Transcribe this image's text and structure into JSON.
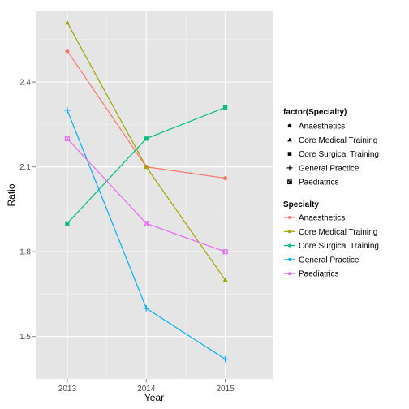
{
  "chart_data": {
    "type": "line",
    "title": "",
    "xlabel": "Year",
    "ylabel": "Ratio",
    "categories": [
      "2013",
      "2014",
      "2015"
    ],
    "xlim": [
      2012.6,
      2015.6
    ],
    "ylim": [
      1.35,
      2.65
    ],
    "yticks": [
      1.5,
      1.8,
      2.1,
      2.4
    ],
    "ytick_labels": [
      "1.5",
      "1.8",
      "2.1",
      "2.4"
    ],
    "grid": true,
    "legend_position": "right",
    "shape_legend": {
      "title": "factor(Specialty)",
      "entries": [
        "Anaesthetics",
        "Core Medical Training",
        "Core Surgical Training",
        "General Practice",
        "Paediatrics"
      ]
    },
    "color_legend": {
      "title": "Specialty",
      "entries": [
        "Anaesthetics",
        "Core Medical Training",
        "Core Surgical Training",
        "General Practice",
        "Paediatrics"
      ]
    },
    "series": [
      {
        "name": "Anaesthetics",
        "color": "#F8766D",
        "shape": "circle",
        "values": [
          2.51,
          2.1,
          2.06
        ]
      },
      {
        "name": "Core Medical Training",
        "color": "#A3A500",
        "shape": "triangle",
        "values": [
          2.61,
          2.1,
          1.7
        ]
      },
      {
        "name": "Core Surgical Training",
        "color": "#00BF7D",
        "shape": "square",
        "values": [
          1.9,
          2.2,
          2.31
        ]
      },
      {
        "name": "General Practice",
        "color": "#00B0F6",
        "shape": "plus",
        "values": [
          2.3,
          1.6,
          1.42
        ]
      },
      {
        "name": "Paediatrics",
        "color": "#E76BF3",
        "shape": "boxcross",
        "values": [
          2.2,
          1.9,
          1.8
        ]
      }
    ]
  }
}
